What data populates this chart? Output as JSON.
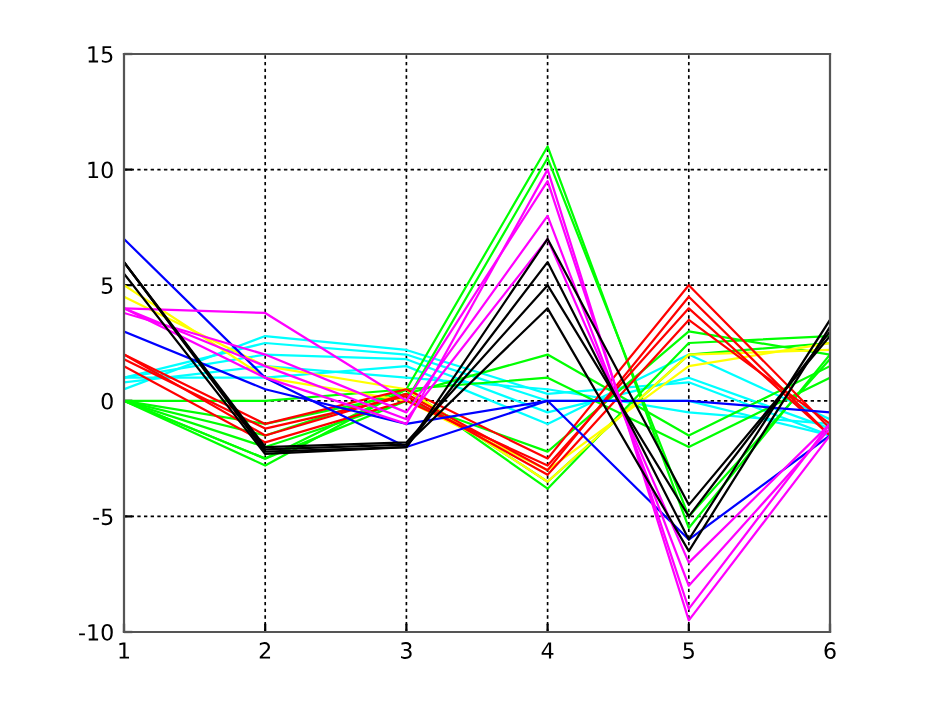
{
  "chart_data": {
    "type": "line",
    "x": [
      1,
      2,
      3,
      4,
      5,
      6
    ],
    "xlim": [
      1,
      6
    ],
    "xticks": [
      1,
      2,
      3,
      4,
      5,
      6
    ],
    "ylim": [
      -10,
      15
    ],
    "yticks": [
      -10,
      -5,
      0,
      5,
      10,
      15
    ],
    "grid": true,
    "line_style": "solid",
    "marker": "none",
    "series": [
      {
        "color": "#00ffff",
        "values": [
          1,
          2.5,
          2,
          0,
          0,
          -1.5
        ]
      },
      {
        "color": "#00ffff",
        "values": [
          1,
          2,
          1.8,
          -0.5,
          1,
          -1.2
        ]
      },
      {
        "color": "#00ffff",
        "values": [
          0.8,
          1.5,
          1,
          0.5,
          -0.5,
          -1
        ]
      },
      {
        "color": "#00ffff",
        "values": [
          1,
          1,
          1.5,
          -1,
          2,
          -0.8
        ]
      },
      {
        "color": "#00ffff",
        "values": [
          0.5,
          2.8,
          2.2,
          0.3,
          0.8,
          -1.5
        ]
      },
      {
        "color": "#00ff00",
        "values": [
          0,
          -2.5,
          0.5,
          -3.5,
          2,
          2.5
        ]
      },
      {
        "color": "#00ff00",
        "values": [
          0,
          -2,
          0,
          -2.2,
          3,
          2
        ]
      },
      {
        "color": "#00ff00",
        "values": [
          0,
          -1,
          0.3,
          2,
          -1.5,
          1.5
        ]
      },
      {
        "color": "#00ff00",
        "values": [
          0,
          0,
          0.5,
          1,
          -2,
          1
        ]
      },
      {
        "color": "#00ff00",
        "values": [
          0,
          -1.5,
          0.5,
          -3.8,
          2.5,
          2.8
        ]
      },
      {
        "color": "#00ff00",
        "values": [
          0,
          -2.8,
          0.5,
          11,
          -5.5,
          2
        ]
      },
      {
        "color": "#00ff00",
        "values": [
          0,
          -2.5,
          0,
          10.5,
          -5,
          1.8
        ]
      },
      {
        "color": "#ffff00",
        "values": [
          5,
          1,
          0,
          -3,
          1.5,
          2.5
        ]
      },
      {
        "color": "#ffff00",
        "values": [
          4.5,
          1.5,
          0.5,
          -3.5,
          2,
          2.2
        ]
      },
      {
        "color": "#ff0000",
        "values": [
          2,
          -1.5,
          0.3,
          -3,
          4.5,
          -1.5
        ]
      },
      {
        "color": "#ff0000",
        "values": [
          2,
          -1,
          0.5,
          -2.5,
          5,
          -1.2
        ]
      },
      {
        "color": "#ff0000",
        "values": [
          1.5,
          -1.8,
          0,
          -2.8,
          4,
          -1.5
        ]
      },
      {
        "color": "#ff0000",
        "values": [
          1.8,
          -1.2,
          0.2,
          -3.2,
          3.5,
          -1
        ]
      },
      {
        "color": "#0000ff",
        "values": [
          7,
          1,
          -2,
          0,
          -6,
          -1.5
        ]
      },
      {
        "color": "#0000ff",
        "values": [
          3,
          0.5,
          -1,
          0,
          0,
          -0.5
        ]
      },
      {
        "color": "#ff00ff",
        "values": [
          4,
          1,
          -1,
          10,
          -9.5,
          -1.5
        ]
      },
      {
        "color": "#ff00ff",
        "values": [
          4,
          3.8,
          0,
          9.5,
          -9,
          -1
        ]
      },
      {
        "color": "#ff00ff",
        "values": [
          3.8,
          2,
          -0.5,
          8,
          -8,
          -1.2
        ]
      },
      {
        "color": "#ff00ff",
        "values": [
          4,
          1.5,
          -0.8,
          7,
          -7,
          -1
        ]
      },
      {
        "color": "#000000",
        "values": [
          6,
          -2.2,
          -2,
          6,
          -6,
          3.5
        ]
      },
      {
        "color": "#000000",
        "values": [
          6,
          -2,
          -1.8,
          5,
          -5,
          3
        ]
      },
      {
        "color": "#000000",
        "values": [
          5.5,
          -2.3,
          -2,
          7,
          -4.5,
          2.8
        ]
      },
      {
        "color": "#000000",
        "values": [
          6,
          -2.1,
          -1.9,
          4,
          -6.5,
          3.2
        ]
      }
    ]
  }
}
